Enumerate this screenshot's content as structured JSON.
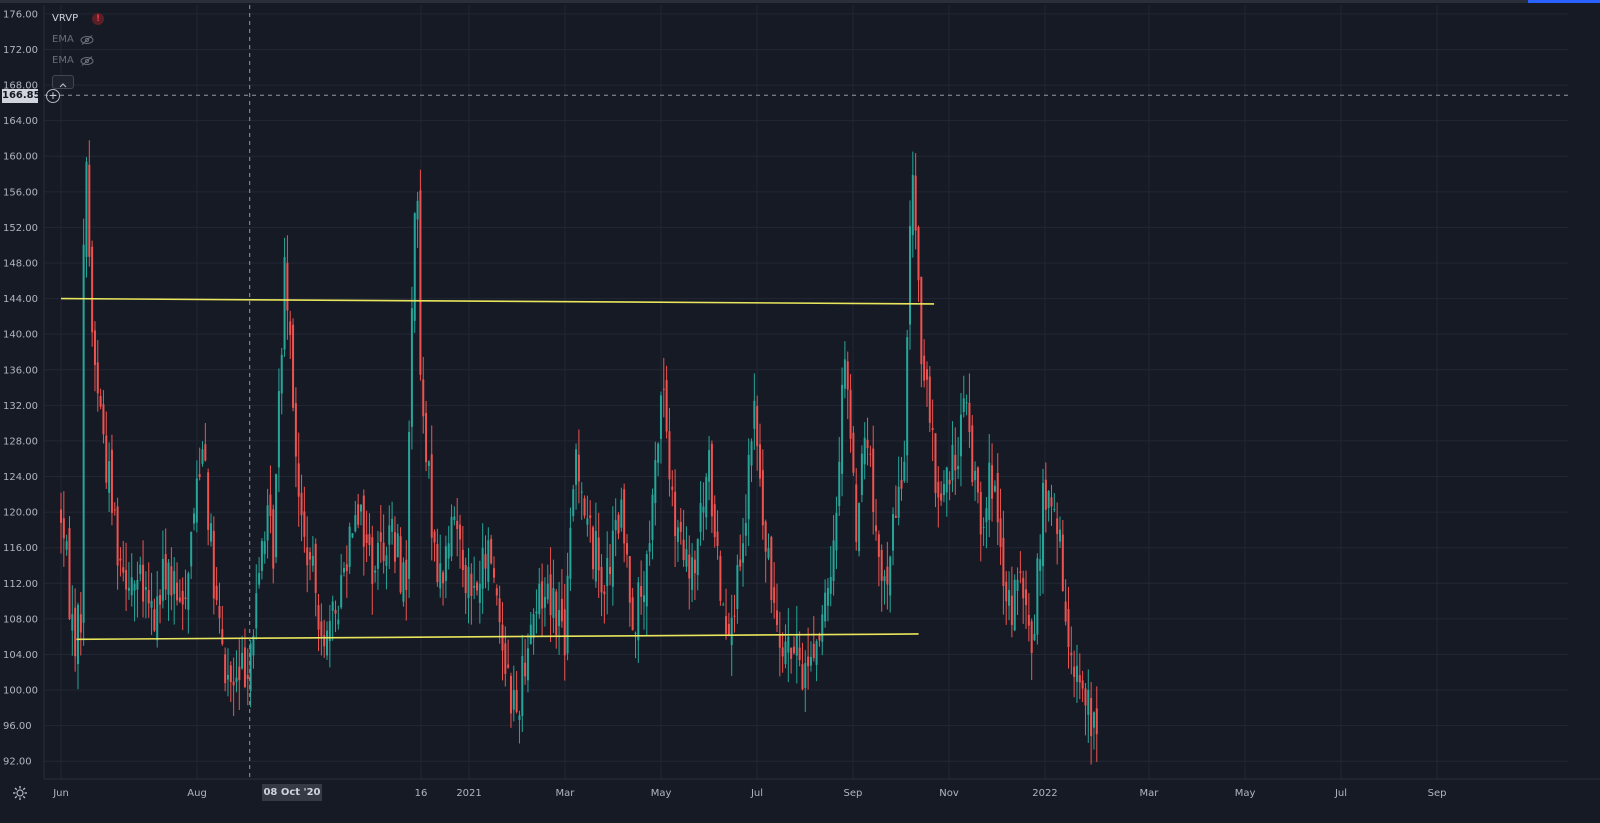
{
  "indicators": [
    {
      "name": "VRVP",
      "hidden": false,
      "warning": "!"
    },
    {
      "name": "EMA",
      "hidden": true
    },
    {
      "name": "EMA",
      "hidden": true
    }
  ],
  "crosshair": {
    "price_label": "166.85",
    "date_label": "08 Oct '20"
  },
  "colors": {
    "background": "#161a25",
    "grid": "#232734",
    "up": "#26a69a",
    "down": "#ef5350",
    "trendline": "#e9e55c",
    "axis_text": "#b2b5be",
    "accent": "#2962ff"
  },
  "chart_data": {
    "type": "candlestick",
    "ylim": [
      90,
      177
    ],
    "y_ticks": [
      "92.00",
      "96.00",
      "100.00",
      "104.00",
      "108.00",
      "112.00",
      "116.00",
      "120.00",
      "124.00",
      "128.00",
      "132.00",
      "136.00",
      "140.00",
      "144.00",
      "148.00",
      "152.00",
      "156.00",
      "160.00",
      "164.00",
      "168.00",
      "172.00",
      "176.00"
    ],
    "x_ticks": [
      {
        "label": "Jun",
        "t": 0.0
      },
      {
        "label": "Aug",
        "t": 0.1466
      },
      {
        "label": "16",
        "t": 0.3879
      },
      {
        "label": "2021",
        "t": 0.4397
      },
      {
        "label": "Mar",
        "t": 0.5431
      },
      {
        "label": "May",
        "t": 0.6466
      },
      {
        "label": "Jul",
        "t": 0.75
      },
      {
        "label": "Sep",
        "t": 0.8534
      },
      {
        "label": "Nov",
        "t": 0.9569
      },
      {
        "label": "2022",
        "t": 1.0603
      },
      {
        "label": "Mar",
        "t": 1.1724
      },
      {
        "label": "May",
        "t": 1.2759
      },
      {
        "label": "Jul",
        "t": 1.3793
      },
      {
        "label": "Sep",
        "t": 1.4828
      }
    ],
    "x_start": "2020-05-27",
    "x_end": "2022-06-02",
    "keypoints": [
      [
        "2020-05-27",
        120
      ],
      [
        "2020-06-05",
        106
      ],
      [
        "2020-06-10",
        108
      ],
      [
        "2020-06-13",
        166
      ],
      [
        "2020-06-18",
        140
      ],
      [
        "2020-06-28",
        126
      ],
      [
        "2020-07-08",
        115
      ],
      [
        "2020-07-20",
        112
      ],
      [
        "2020-08-01",
        108
      ],
      [
        "2020-08-10",
        114
      ],
      [
        "2020-08-20",
        108
      ],
      [
        "2020-08-28",
        118
      ],
      [
        "2020-09-05",
        130
      ],
      [
        "2020-09-12",
        112
      ],
      [
        "2020-09-20",
        102
      ],
      [
        "2020-09-28",
        100
      ],
      [
        "2020-10-05",
        103
      ],
      [
        "2020-10-12",
        108
      ],
      [
        "2020-10-18",
        119
      ],
      [
        "2020-10-25",
        116
      ],
      [
        "2020-11-02",
        150
      ],
      [
        "2020-11-06",
        140
      ],
      [
        "2020-11-12",
        120
      ],
      [
        "2020-11-22",
        112
      ],
      [
        "2020-12-03",
        105
      ],
      [
        "2020-12-12",
        112
      ],
      [
        "2020-12-22",
        122
      ],
      [
        "2021-01-03",
        114
      ],
      [
        "2021-01-15",
        118
      ],
      [
        "2021-01-27",
        112
      ],
      [
        "2021-02-03",
        162
      ],
      [
        "2021-02-07",
        130
      ],
      [
        "2021-02-20",
        112
      ],
      [
        "2021-03-03",
        120
      ],
      [
        "2021-03-15",
        110
      ],
      [
        "2021-03-28",
        116
      ],
      [
        "2021-04-08",
        103
      ],
      [
        "2021-04-15",
        97
      ],
      [
        "2021-04-25",
        108
      ],
      [
        "2021-05-08",
        112
      ],
      [
        "2021-05-20",
        106
      ],
      [
        "2021-05-28",
        128
      ],
      [
        "2021-06-05",
        118
      ],
      [
        "2021-06-18",
        112
      ],
      [
        "2021-06-28",
        120
      ],
      [
        "2021-07-08",
        108
      ],
      [
        "2021-07-18",
        113
      ],
      [
        "2021-07-28",
        136
      ],
      [
        "2021-08-05",
        118
      ],
      [
        "2021-08-18",
        112
      ],
      [
        "2021-08-30",
        125
      ],
      [
        "2021-09-10",
        108
      ],
      [
        "2021-09-22",
        112
      ],
      [
        "2021-10-01",
        132
      ],
      [
        "2021-10-10",
        114
      ],
      [
        "2021-10-22",
        106
      ],
      [
        "2021-11-05",
        102
      ],
      [
        "2021-11-15",
        106
      ],
      [
        "2021-11-25",
        111
      ],
      [
        "2021-12-05",
        140
      ],
      [
        "2021-12-12",
        118
      ],
      [
        "2021-12-20",
        130
      ],
      [
        "2021-12-30",
        110
      ],
      [
        "2022-01-08",
        118
      ],
      [
        "2022-01-15",
        124
      ],
      [
        "2022-01-22",
        160
      ],
      [
        "2022-01-28",
        138
      ],
      [
        "2022-02-08",
        122
      ],
      [
        "2022-02-18",
        124
      ],
      [
        "2022-02-28",
        132
      ],
      [
        "2022-03-10",
        120
      ],
      [
        "2022-03-20",
        124
      ],
      [
        "2022-03-28",
        108
      ],
      [
        "2022-04-08",
        112
      ],
      [
        "2022-04-16",
        104
      ],
      [
        "2022-04-25",
        122
      ],
      [
        "2022-05-05",
        118
      ],
      [
        "2022-05-10",
        108
      ],
      [
        "2022-05-18",
        103
      ],
      [
        "2022-05-28",
        96
      ],
      [
        "2022-06-02",
        94
      ]
    ],
    "trendlines": [
      {
        "from": [
          "2020-05-27",
          144.0
        ],
        "to": [
          "2022-02-06",
          143.4
        ]
      },
      {
        "from": [
          "2020-06-07",
          105.7
        ],
        "to": [
          "2022-01-26",
          106.3
        ]
      }
    ],
    "crosshair": {
      "date": "2020-10-08",
      "price": 166.85
    }
  }
}
